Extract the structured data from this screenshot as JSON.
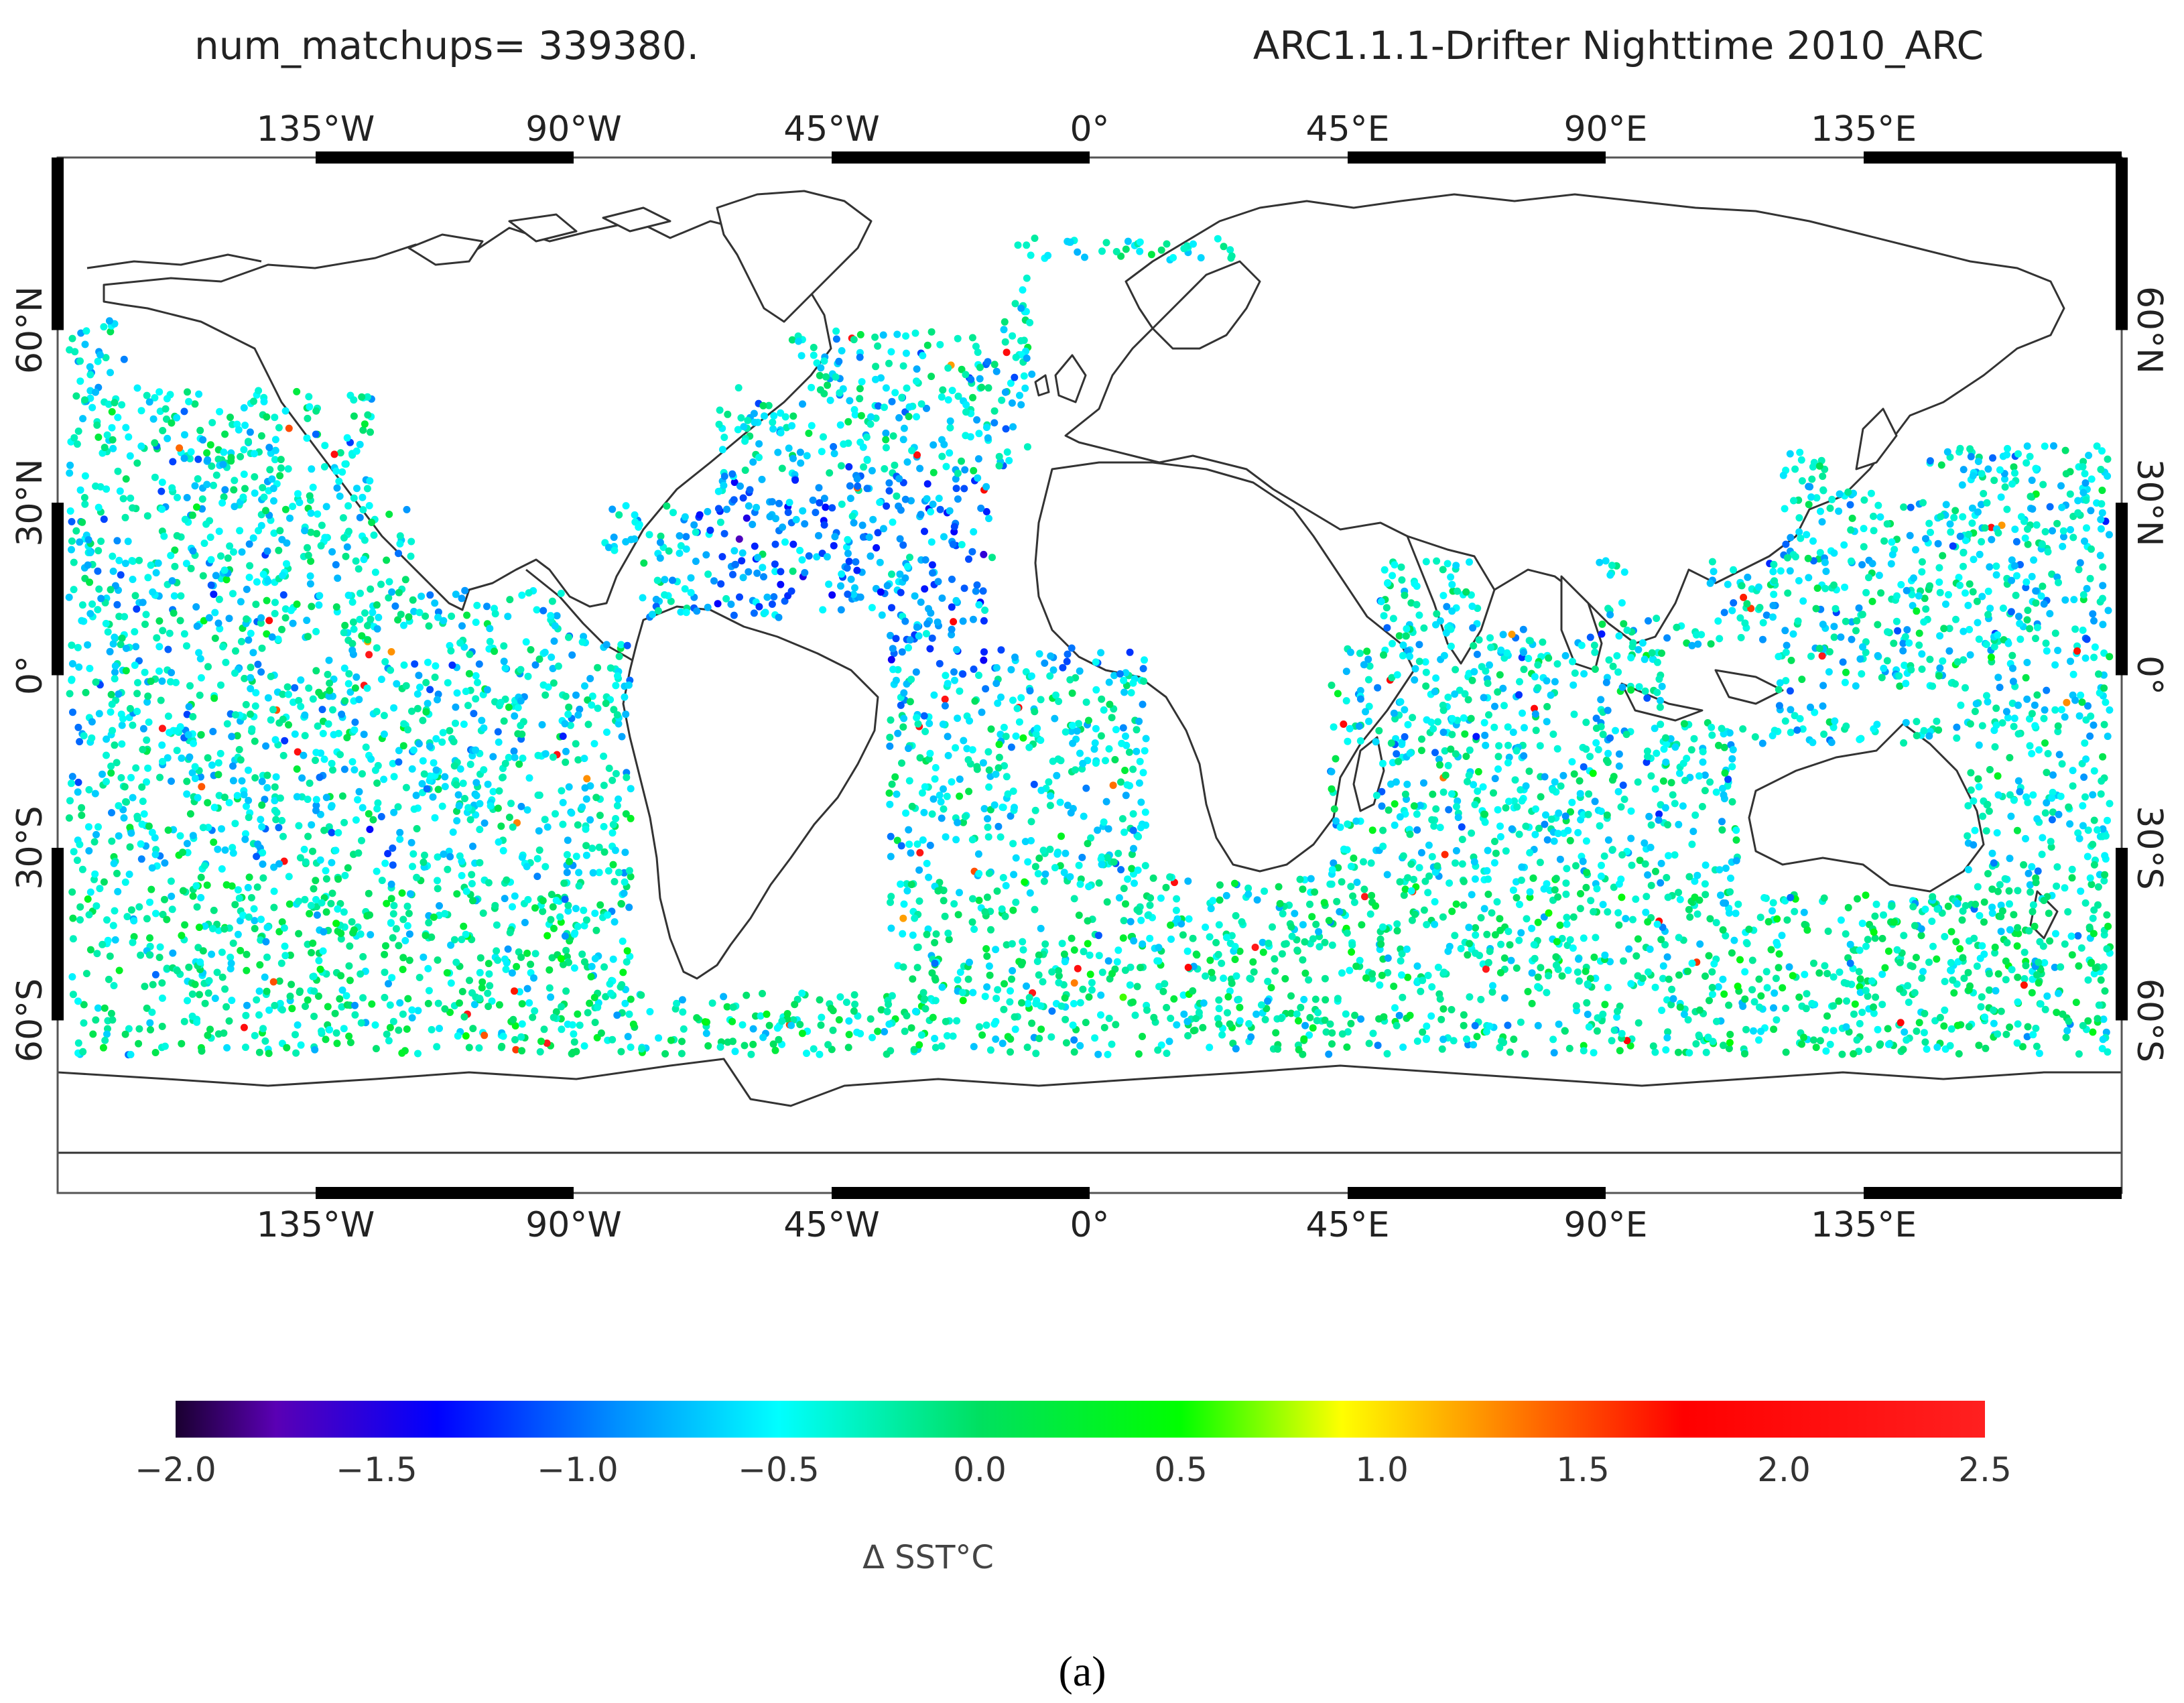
{
  "header": {
    "left": "num_matchups= 339380.",
    "right": "ARC1.1.1-Drifter Nighttime 2010_ARC"
  },
  "map": {
    "projection": "equirectangular",
    "lon_range": [
      -180,
      180
    ],
    "lat_range": [
      -90,
      90
    ],
    "lon_ticks": [
      {
        "value": -135,
        "label": "135°W"
      },
      {
        "value": -90,
        "label": "90°W"
      },
      {
        "value": -45,
        "label": "45°W"
      },
      {
        "value": 0,
        "label": "0°"
      },
      {
        "value": 45,
        "label": "45°E"
      },
      {
        "value": 90,
        "label": "90°E"
      },
      {
        "value": 135,
        "label": "135°E"
      }
    ],
    "lat_ticks": [
      {
        "value": 60,
        "label": "60°N"
      },
      {
        "value": 30,
        "label": "30°N"
      },
      {
        "value": 0,
        "label": "0°"
      },
      {
        "value": -30,
        "label": "30°S"
      },
      {
        "value": -60,
        "label": "60°S"
      }
    ],
    "frame_color": "#000000",
    "land_fill": "#ffffff",
    "coastline_color": "#333333"
  },
  "chart_data": {
    "type": "scatter",
    "description_fields": "geographic scatter of drifter matchup locations colored by ΔSST",
    "num_matchups": 339380,
    "colorbar": {
      "min": -2.0,
      "max": 2.5,
      "ticks": [
        "-2.0",
        "-1.5",
        "-1.0",
        "-0.5",
        "0.0",
        "0.5",
        "1.0",
        "1.5",
        "2.0",
        "2.5"
      ],
      "label": "Δ SST°C",
      "stops": [
        {
          "value": -2.0,
          "color": "#1a0030"
        },
        {
          "value": -1.75,
          "color": "#5a00b4"
        },
        {
          "value": -1.35,
          "color": "#0000ff"
        },
        {
          "value": -0.9,
          "color": "#0090ff"
        },
        {
          "value": -0.5,
          "color": "#00ffff"
        },
        {
          "value": 0.0,
          "color": "#00e060"
        },
        {
          "value": 0.5,
          "color": "#00ff00"
        },
        {
          "value": 0.9,
          "color": "#ffff00"
        },
        {
          "value": 1.4,
          "color": "#ff6600"
        },
        {
          "value": 1.75,
          "color": "#ff0000"
        },
        {
          "value": 2.5,
          "color": "#ff2020"
        }
      ]
    }
  },
  "caption": "(a)"
}
